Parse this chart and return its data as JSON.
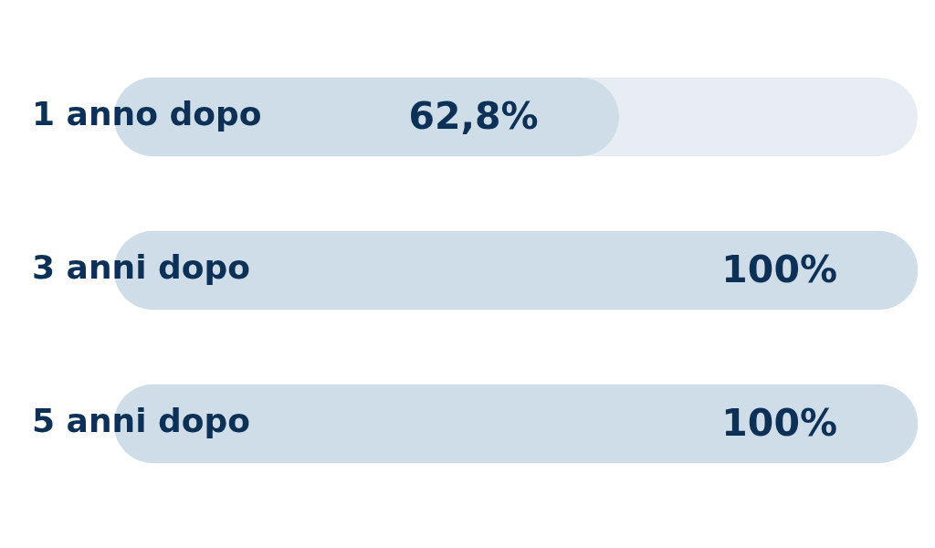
{
  "chart_data": {
    "type": "bar",
    "orientation": "horizontal",
    "categories": [
      "1 anno dopo",
      "3 anni dopo",
      "5 anni dopo"
    ],
    "values": [
      62.8,
      100,
      100
    ],
    "color": "#cfdde9",
    "value_labels": [
      "62,8%",
      "100%",
      "100%"
    ],
    "xlim": [
      0,
      100
    ],
    "tick_labels": false
  }
}
